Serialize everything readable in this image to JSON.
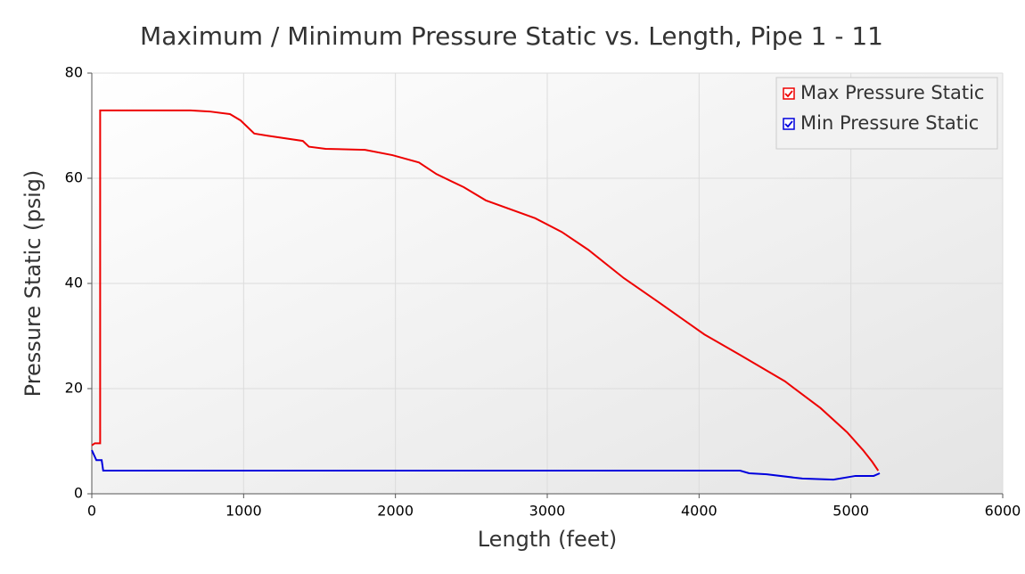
{
  "chart_data": {
    "type": "line",
    "title": "Maximum / Minimum Pressure Static vs. Length, Pipe 1 - 11",
    "x_label": "Length (feet)",
    "y_label": "Pressure Static (psig)",
    "xlim": [
      0,
      6000
    ],
    "xticks": [
      0,
      1000,
      2000,
      3000,
      4000,
      5000,
      6000
    ],
    "ylim": [
      0,
      80
    ],
    "yticks": [
      0,
      20,
      40,
      60,
      80
    ],
    "grid": true,
    "legend": "upper right",
    "series": [
      {
        "name": "Max Pressure Static",
        "color": "#ee0000",
        "x": [
          0,
          20,
          55,
          55,
          650,
          775,
          910,
          980,
          1070,
          1157,
          1390,
          1430,
          1540,
          1800,
          1980,
          2155,
          2270,
          2450,
          2595,
          2920,
          3095,
          3270,
          3505,
          3740,
          4035,
          4270,
          4565,
          4800,
          4975,
          5080,
          5140,
          5180
        ],
        "values": [
          9.2,
          9.6,
          9.6,
          72.9,
          72.9,
          72.7,
          72.2,
          71,
          68.5,
          68.1,
          67.1,
          66,
          65.6,
          65.4,
          64.4,
          63,
          60.8,
          58.3,
          55.8,
          52.4,
          49.8,
          46.4,
          41,
          36.3,
          30.3,
          26.4,
          21.4,
          16.3,
          11.7,
          8.3,
          6.1,
          4.4
        ]
      },
      {
        "name": "Min Pressure Static",
        "color": "#0000dd",
        "x": [
          0,
          30,
          65,
          75,
          4270,
          4330,
          4445,
          4680,
          4885,
          5030,
          5150,
          5190
        ],
        "values": [
          8.3,
          6.4,
          6.4,
          4.4,
          4.4,
          3.9,
          3.7,
          2.9,
          2.7,
          3.4,
          3.4,
          3.9
        ]
      }
    ]
  }
}
